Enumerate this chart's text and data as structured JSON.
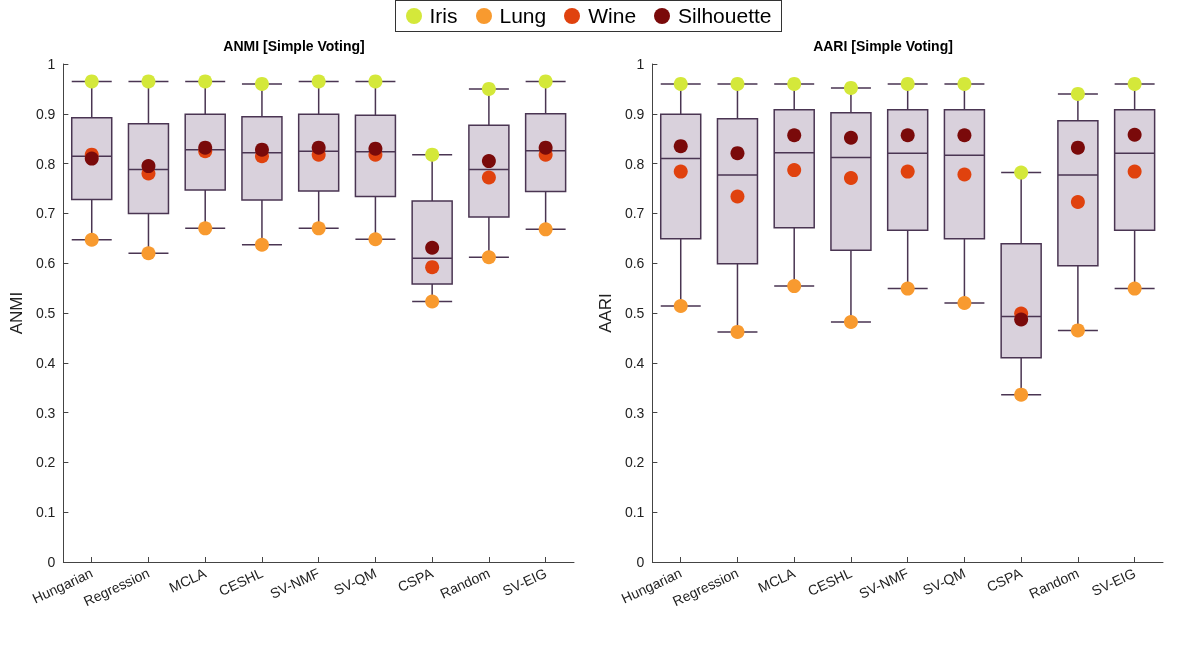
{
  "chart_data": [
    {
      "type": "box",
      "title": "ANMI [Simple Voting]",
      "ylabel": "ANMI",
      "categories": [
        "Hungarian",
        "Regression",
        "MCLA",
        "CESHL",
        "SV-NMF",
        "SV-QM",
        "CSPA",
        "Random",
        "SV-EIG"
      ],
      "ylim": [
        0,
        1
      ],
      "yticks": [
        0,
        0.1,
        0.2,
        0.3,
        0.4,
        0.5,
        0.6,
        0.7,
        0.8,
        0.9,
        1
      ],
      "grid": false,
      "legend": "top",
      "marker": "circle",
      "color": "#d9d1dc",
      "boxes": [
        {
          "low": 0.647,
          "q1": 0.728,
          "median": 0.815,
          "q3": 0.892,
          "high": 0.965
        },
        {
          "low": 0.62,
          "q1": 0.7,
          "median": 0.788,
          "q3": 0.88,
          "high": 0.965
        },
        {
          "low": 0.67,
          "q1": 0.747,
          "median": 0.828,
          "q3": 0.899,
          "high": 0.965
        },
        {
          "low": 0.637,
          "q1": 0.727,
          "median": 0.822,
          "q3": 0.894,
          "high": 0.96
        },
        {
          "low": 0.67,
          "q1": 0.745,
          "median": 0.825,
          "q3": 0.899,
          "high": 0.965
        },
        {
          "low": 0.648,
          "q1": 0.734,
          "median": 0.824,
          "q3": 0.897,
          "high": 0.965
        },
        {
          "low": 0.523,
          "q1": 0.558,
          "median": 0.61,
          "q3": 0.725,
          "high": 0.818
        },
        {
          "low": 0.612,
          "q1": 0.693,
          "median": 0.788,
          "q3": 0.877,
          "high": 0.95
        },
        {
          "low": 0.668,
          "q1": 0.744,
          "median": 0.826,
          "q3": 0.9,
          "high": 0.965
        }
      ],
      "series": [
        {
          "type": "scatter",
          "name": "Iris",
          "color": "#d4e83a",
          "x": [
            "Hungarian",
            "Regression",
            "MCLA",
            "CESHL",
            "SV-NMF",
            "SV-QM",
            "CSPA",
            "Random",
            "SV-EIG"
          ],
          "values": [
            0.965,
            0.965,
            0.965,
            0.96,
            0.965,
            0.965,
            0.818,
            0.95,
            0.965
          ]
        },
        {
          "type": "scatter",
          "name": "Lung",
          "color": "#f89a2f",
          "x": [
            "Hungarian",
            "Regression",
            "MCLA",
            "CESHL",
            "SV-NMF",
            "SV-QM",
            "CSPA",
            "Random",
            "SV-EIG"
          ],
          "values": [
            0.647,
            0.62,
            0.67,
            0.637,
            0.67,
            0.648,
            0.523,
            0.612,
            0.668
          ]
        },
        {
          "type": "scatter",
          "name": "Wine",
          "color": "#e0420e",
          "x": [
            "Hungarian",
            "Regression",
            "MCLA",
            "CESHL",
            "SV-NMF",
            "SV-QM",
            "CSPA",
            "Random",
            "SV-EIG"
          ],
          "values": [
            0.818,
            0.78,
            0.825,
            0.815,
            0.818,
            0.818,
            0.592,
            0.772,
            0.818
          ]
        },
        {
          "type": "scatter",
          "name": "Silhouette",
          "color": "#7a0a0a",
          "x": [
            "Hungarian",
            "Regression",
            "MCLA",
            "CESHL",
            "SV-NMF",
            "SV-QM",
            "CSPA",
            "Random",
            "SV-EIG"
          ],
          "values": [
            0.81,
            0.795,
            0.832,
            0.828,
            0.832,
            0.83,
            0.631,
            0.805,
            0.832
          ]
        }
      ]
    },
    {
      "type": "box",
      "title": "AARI [Simple Voting]",
      "ylabel": "AARI",
      "categories": [
        "Hungarian",
        "Regression",
        "MCLA",
        "CESHL",
        "SV-NMF",
        "SV-QM",
        "CSPA",
        "Random",
        "SV-EIG"
      ],
      "ylim": [
        0,
        1
      ],
      "yticks": [
        0,
        0.1,
        0.2,
        0.3,
        0.4,
        0.5,
        0.6,
        0.7,
        0.8,
        0.9,
        1
      ],
      "grid": false,
      "marker": "circle",
      "color": "#d9d1dc",
      "boxes": [
        {
          "low": 0.514,
          "q1": 0.649,
          "median": 0.81,
          "q3": 0.899,
          "high": 0.96
        },
        {
          "low": 0.462,
          "q1": 0.599,
          "median": 0.777,
          "q3": 0.89,
          "high": 0.96
        },
        {
          "low": 0.554,
          "q1": 0.671,
          "median": 0.822,
          "q3": 0.908,
          "high": 0.96
        },
        {
          "low": 0.482,
          "q1": 0.626,
          "median": 0.812,
          "q3": 0.902,
          "high": 0.952
        },
        {
          "low": 0.549,
          "q1": 0.666,
          "median": 0.821,
          "q3": 0.908,
          "high": 0.96
        },
        {
          "low": 0.52,
          "q1": 0.649,
          "median": 0.817,
          "q3": 0.908,
          "high": 0.96
        },
        {
          "low": 0.336,
          "q1": 0.41,
          "median": 0.493,
          "q3": 0.639,
          "high": 0.782
        },
        {
          "low": 0.465,
          "q1": 0.595,
          "median": 0.777,
          "q3": 0.886,
          "high": 0.94
        },
        {
          "low": 0.549,
          "q1": 0.666,
          "median": 0.821,
          "q3": 0.908,
          "high": 0.96
        }
      ],
      "series": [
        {
          "type": "scatter",
          "color": "#d4e83a",
          "x": [
            "Hungarian",
            "Regression",
            "MCLA",
            "CESHL",
            "SV-NMF",
            "SV-QM",
            "CSPA",
            "Random",
            "SV-EIG"
          ],
          "values": [
            0.96,
            0.96,
            0.96,
            0.952,
            0.96,
            0.96,
            0.782,
            0.94,
            0.96
          ]
        },
        {
          "type": "scatter",
          "color": "#f89a2f",
          "x": [
            "Hungarian",
            "Regression",
            "MCLA",
            "CESHL",
            "SV-NMF",
            "SV-QM",
            "CSPA",
            "Random",
            "SV-EIG"
          ],
          "values": [
            0.514,
            0.462,
            0.554,
            0.482,
            0.549,
            0.52,
            0.336,
            0.465,
            0.549
          ]
        },
        {
          "type": "scatter",
          "color": "#e0420e",
          "x": [
            "Hungarian",
            "Regression",
            "MCLA",
            "CESHL",
            "SV-NMF",
            "SV-QM",
            "CSPA",
            "Random",
            "SV-EIG"
          ],
          "values": [
            0.784,
            0.734,
            0.787,
            0.771,
            0.784,
            0.778,
            0.499,
            0.723,
            0.784
          ]
        },
        {
          "type": "scatter",
          "color": "#7a0a0a",
          "x": [
            "Hungarian",
            "Regression",
            "MCLA",
            "CESHL",
            "SV-NMF",
            "SV-QM",
            "CSPA",
            "Random",
            "SV-EIG"
          ],
          "values": [
            0.835,
            0.821,
            0.857,
            0.852,
            0.857,
            0.857,
            0.487,
            0.832,
            0.858
          ]
        }
      ]
    }
  ]
}
